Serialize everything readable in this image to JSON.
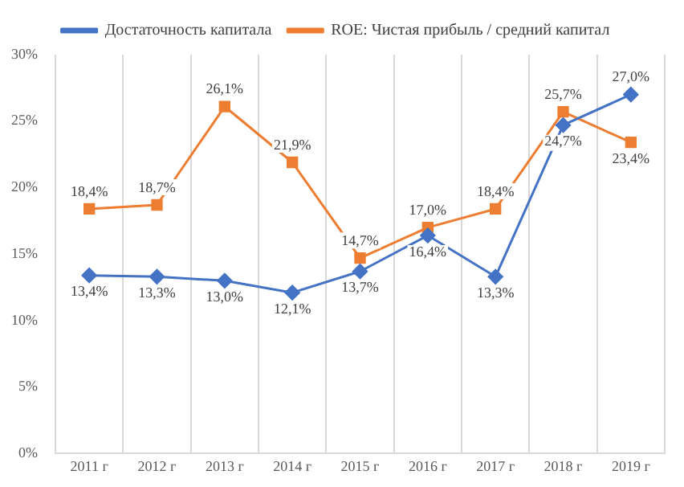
{
  "chart_data": {
    "type": "line",
    "categories": [
      "2011 г",
      "2012 г",
      "2013 г",
      "2014 г",
      "2015 г",
      "2016 г",
      "2017 г",
      "2018 г",
      "2019 г"
    ],
    "series": [
      {
        "name": "Достаточность капитала",
        "color": "#4472c4",
        "marker": "diamond",
        "values": [
          13.4,
          13.3,
          13.0,
          12.1,
          13.7,
          16.4,
          13.3,
          24.7,
          27.0
        ],
        "value_labels": [
          "13,4%",
          "13,3%",
          "13,0%",
          "12,1%",
          "13,7%",
          "16,4%",
          "13,3%",
          "24,7%",
          "27,0%"
        ]
      },
      {
        "name": "ROE: Чистая прибыль / средний капитал",
        "color": "#ed7d31",
        "marker": "square",
        "values": [
          18.4,
          18.7,
          26.1,
          21.9,
          14.7,
          17.0,
          18.4,
          25.7,
          23.4
        ],
        "value_labels": [
          "18,4%",
          "18,7%",
          "26,1%",
          "21,9%",
          "14,7%",
          "17,0%",
          "18,4%",
          "25,7%",
          "23,4%"
        ]
      }
    ],
    "ylim": [
      0,
      30
    ],
    "yticks": [
      {
        "value": 0,
        "label": "0%"
      },
      {
        "value": 5,
        "label": "5%"
      },
      {
        "value": 10,
        "label": "10%"
      },
      {
        "value": 15,
        "label": "15%"
      },
      {
        "value": 20,
        "label": "20%"
      },
      {
        "value": 25,
        "label": "25%"
      },
      {
        "value": 30,
        "label": "30%"
      }
    ],
    "grid": "x",
    "legend": "top",
    "line_style": "solid"
  }
}
